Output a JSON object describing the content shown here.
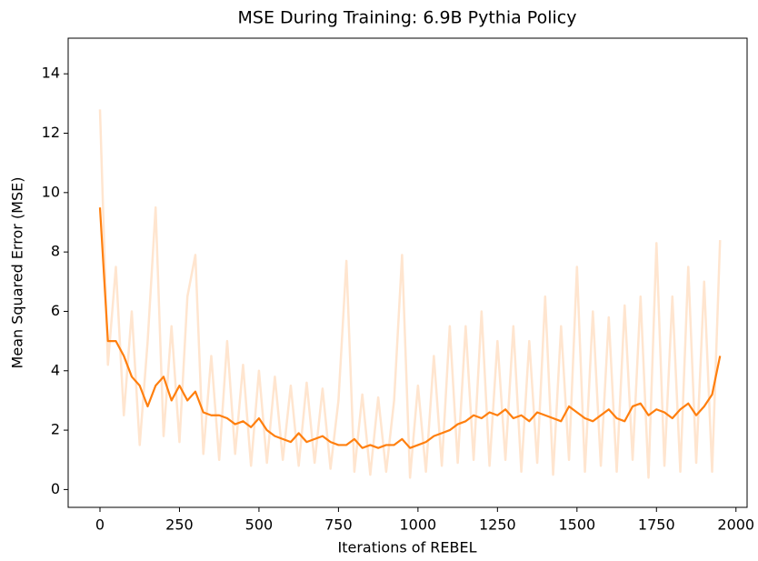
{
  "chart_data": {
    "type": "line",
    "title": "MSE During Training: 6.9B Pythia Policy",
    "xlabel": "Iterations of REBEL",
    "ylabel": "Mean Squared Error (MSE)",
    "x": [
      0,
      25,
      50,
      75,
      100,
      125,
      150,
      175,
      200,
      225,
      250,
      275,
      300,
      325,
      350,
      375,
      400,
      425,
      450,
      475,
      500,
      525,
      550,
      575,
      600,
      625,
      650,
      675,
      700,
      725,
      750,
      775,
      800,
      825,
      850,
      875,
      900,
      925,
      950,
      975,
      1000,
      1025,
      1050,
      1075,
      1100,
      1125,
      1150,
      1175,
      1200,
      1225,
      1250,
      1275,
      1300,
      1325,
      1350,
      1375,
      1400,
      1425,
      1450,
      1475,
      1500,
      1525,
      1550,
      1575,
      1600,
      1625,
      1650,
      1675,
      1700,
      1725,
      1750,
      1775,
      1800,
      1825,
      1850,
      1875,
      1900,
      1925,
      1950
    ],
    "series": [
      {
        "color": "#ffe5cf",
        "values": [
          12.8,
          4.2,
          7.5,
          2.5,
          6.0,
          1.5,
          5.0,
          9.5,
          1.8,
          5.5,
          1.6,
          6.5,
          7.9,
          1.2,
          4.5,
          1.0,
          5.0,
          1.2,
          4.2,
          0.8,
          4.0,
          0.9,
          3.8,
          1.0,
          3.5,
          0.8,
          3.6,
          0.9,
          3.4,
          0.7,
          3.0,
          7.7,
          0.6,
          3.2,
          0.5,
          3.1,
          0.6,
          3.0,
          7.9,
          0.4,
          3.5,
          0.6,
          4.5,
          0.8,
          5.5,
          0.9,
          5.5,
          1.0,
          6.0,
          0.8,
          5.0,
          1.0,
          5.5,
          0.6,
          5.0,
          0.9,
          6.5,
          0.5,
          5.5,
          1.0,
          7.5,
          0.6,
          6.0,
          0.8,
          5.8,
          0.6,
          6.2,
          1.0,
          6.5,
          0.4,
          8.3,
          0.8,
          6.5,
          0.6,
          7.5,
          0.9,
          7.0,
          0.6,
          8.4
        ]
      },
      {
        "color": "#ff7f0e",
        "values": [
          9.5,
          5.0,
          5.0,
          4.5,
          3.8,
          3.5,
          2.8,
          3.5,
          3.8,
          3.0,
          3.5,
          3.0,
          3.3,
          2.6,
          2.5,
          2.5,
          2.4,
          2.2,
          2.3,
          2.1,
          2.4,
          2.0,
          1.8,
          1.7,
          1.6,
          1.9,
          1.6,
          1.7,
          1.8,
          1.6,
          1.5,
          1.5,
          1.7,
          1.4,
          1.5,
          1.4,
          1.5,
          1.5,
          1.7,
          1.4,
          1.5,
          1.6,
          1.8,
          1.9,
          2.0,
          2.2,
          2.3,
          2.5,
          2.4,
          2.6,
          2.5,
          2.7,
          2.4,
          2.5,
          2.3,
          2.6,
          2.5,
          2.4,
          2.3,
          2.8,
          2.6,
          2.4,
          2.3,
          2.5,
          2.7,
          2.4,
          2.3,
          2.8,
          2.9,
          2.5,
          2.7,
          2.6,
          2.4,
          2.7,
          2.9,
          2.5,
          2.8,
          3.2,
          4.5
        ]
      }
    ],
    "xlim": [
      -100,
      2035
    ],
    "ylim": [
      -0.6,
      15.2
    ],
    "xticks": [
      0,
      250,
      500,
      750,
      1000,
      1250,
      1500,
      1750,
      2000
    ],
    "yticks": [
      0,
      2,
      4,
      6,
      8,
      10,
      12,
      14
    ],
    "grid": false
  }
}
